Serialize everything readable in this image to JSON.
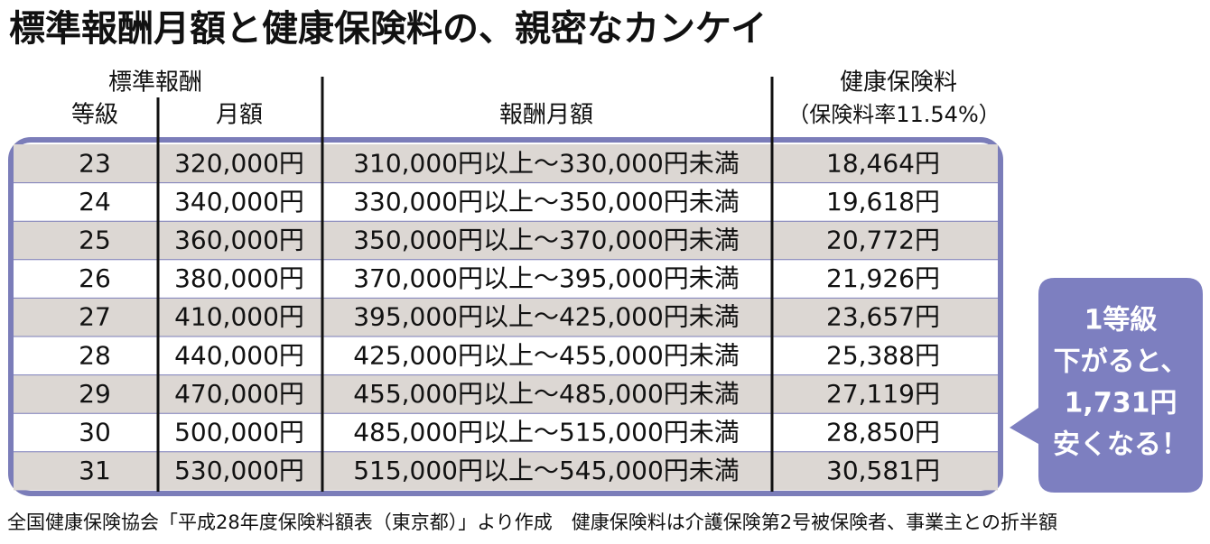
{
  "title": "標準報酬月額と健康保険料の、親密なカンケイ",
  "header": {
    "standard": "標準報酬",
    "grade": "等級",
    "monthly": "月額",
    "range": "報酬月額",
    "premium": "健康保険料",
    "rate": "（保険料率11.54%）"
  },
  "table": {
    "rows": [
      [
        "23",
        "320,000円",
        "310,000円以上～330,000円未満",
        "18,464円"
      ],
      [
        "24",
        "340,000円",
        "330,000円以上～350,000円未満",
        "19,618円"
      ],
      [
        "25",
        "360,000円",
        "350,000円以上～370,000円未満",
        "20,772円"
      ],
      [
        "26",
        "380,000円",
        "370,000円以上～395,000円未満",
        "21,926円"
      ],
      [
        "27",
        "410,000円",
        "395,000円以上～425,000円未満",
        "23,657円"
      ],
      [
        "28",
        "440,000円",
        "425,000円以上～455,000円未満",
        "25,388円"
      ],
      [
        "29",
        "470,000円",
        "455,000円以上～485,000円未満",
        "27,119円"
      ],
      [
        "30",
        "500,000円",
        "485,000円以上～515,000円未満",
        "28,850円"
      ],
      [
        "31",
        "530,000円",
        "515,000円以上～545,000円未満",
        "30,581円"
      ]
    ]
  },
  "callout": [
    "1等級",
    "下がると、",
    "1,731円",
    "安くなる！"
  ],
  "footnote": "全国健康保険協会「平成28年度保険料額表（東京都）」より作成　健康保険料は介護保険第2号被保険者、事業主との折半額"
}
